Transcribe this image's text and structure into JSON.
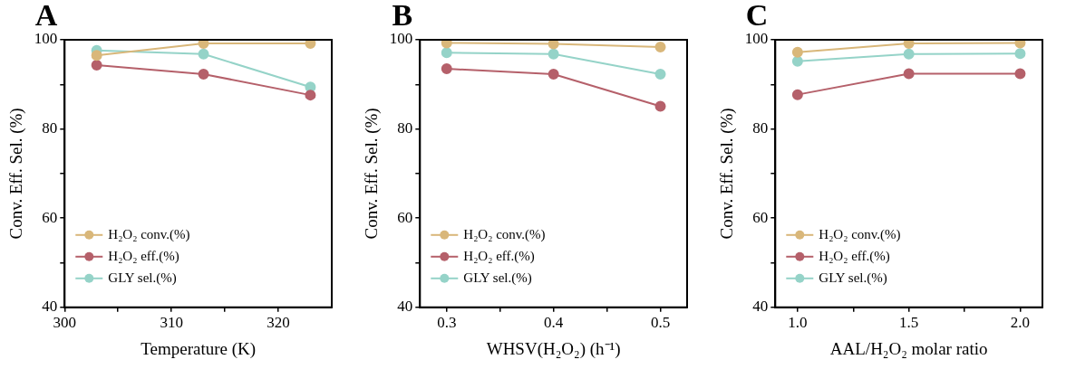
{
  "chart_data": [
    {
      "type": "line",
      "title": "A",
      "xlabel": "Temperature (K)",
      "ylabel": "Conv. Eff. Sel. (%)",
      "x": [
        303,
        313,
        323
      ],
      "series": [
        {
          "name": "H₂O₂ conv.(%)",
          "color": "#d9b77a",
          "values": [
            96.5,
            99.2,
            99.2
          ]
        },
        {
          "name": "H₂O₂ eff.(%)",
          "color": "#b5606a",
          "values": [
            94.3,
            92.3,
            87.6
          ]
        },
        {
          "name": "GLY sel.(%)",
          "color": "#95d3c8",
          "values": [
            97.6,
            96.8,
            89.4
          ]
        }
      ],
      "xlim": [
        300,
        325
      ],
      "xticks": [
        300,
        {
          "value": 305,
          "label": null
        },
        310,
        {
          "value": 315,
          "label": null
        },
        320
      ],
      "ylim": [
        40,
        100
      ],
      "yticks": [
        40,
        {
          "value": 50,
          "label": null
        },
        60,
        {
          "value": 70,
          "label": null
        },
        80,
        {
          "value": 90,
          "label": null
        },
        100
      ],
      "grid": false,
      "legend": "bottom left",
      "marker": "circle"
    },
    {
      "type": "line",
      "title": "B",
      "xlabel": "WHSV(H₂O₂) (h⁻¹)",
      "ylabel": "Conv. Eff. Sel. (%)",
      "x": [
        0.3,
        0.4,
        0.5
      ],
      "series": [
        {
          "name": "H₂O₂ conv.(%)",
          "color": "#d9b77a",
          "values": [
            99.3,
            99.1,
            98.4
          ]
        },
        {
          "name": "H₂O₂ eff.(%)",
          "color": "#b5606a",
          "values": [
            93.5,
            92.3,
            85.1
          ]
        },
        {
          "name": "GLY sel.(%)",
          "color": "#95d3c8",
          "values": [
            97.1,
            96.8,
            92.3
          ]
        }
      ],
      "xlim": [
        0.275,
        0.525
      ],
      "xticks": [
        0.3,
        {
          "value": 0.35,
          "label": null
        },
        0.4,
        {
          "value": 0.45,
          "label": null
        },
        0.5
      ],
      "ylim": [
        40,
        100
      ],
      "yticks": [
        40,
        {
          "value": 50,
          "label": null
        },
        60,
        {
          "value": 70,
          "label": null
        },
        80,
        {
          "value": 90,
          "label": null
        },
        100
      ],
      "grid": false,
      "legend": "bottom left",
      "marker": "circle"
    },
    {
      "type": "line",
      "title": "C",
      "xlabel": "AAL/H₂O₂ molar ratio",
      "ylabel": "Conv. Eff. Sel. (%)",
      "x": [
        1.0,
        1.5,
        2.0
      ],
      "series": [
        {
          "name": "H₂O₂ conv.(%)",
          "color": "#d9b77a",
          "values": [
            97.2,
            99.2,
            99.3
          ]
        },
        {
          "name": "H₂O₂ eff.(%)",
          "color": "#b5606a",
          "values": [
            87.7,
            92.4,
            92.4
          ]
        },
        {
          "name": "GLY sel.(%)",
          "color": "#95d3c8",
          "values": [
            95.2,
            96.8,
            96.9
          ]
        }
      ],
      "xlim": [
        0.9,
        2.1
      ],
      "xticks": [
        {
          "value": 1,
          "label": "1.0"
        },
        {
          "value": 1.25,
          "label": null
        },
        1.5,
        {
          "value": 1.75,
          "label": null
        },
        {
          "value": 2,
          "label": "2.0"
        }
      ],
      "ylim": [
        40,
        100
      ],
      "yticks": [
        40,
        {
          "value": 50,
          "label": null
        },
        60,
        {
          "value": 70,
          "label": null
        },
        80,
        {
          "value": 90,
          "label": null
        },
        100
      ],
      "grid": false,
      "legend": "bottom left",
      "marker": "circle"
    }
  ]
}
